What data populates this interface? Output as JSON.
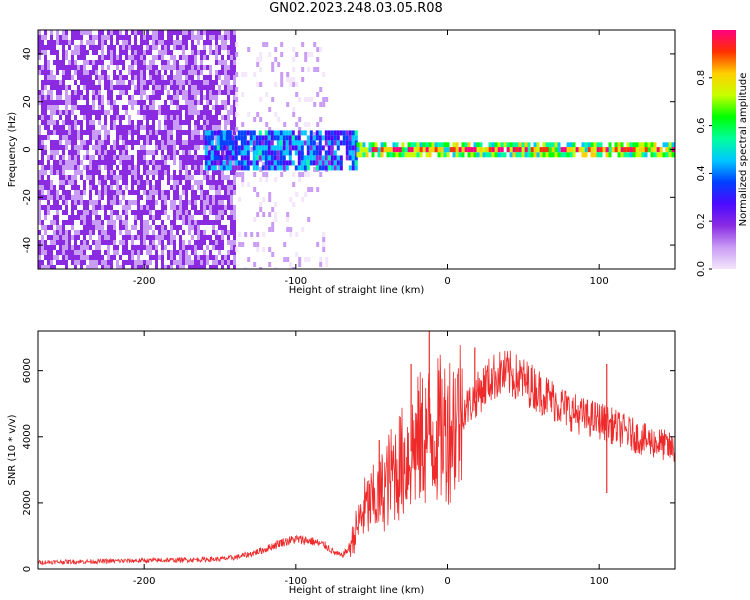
{
  "title": "GN02.2023.248.03.05.R08",
  "colors": {
    "snr_line": "#ee2a2a",
    "axis": "#000000",
    "colormap": [
      "#f4e6fb",
      "#c99cf5",
      "#8a2be2",
      "#4b0aff",
      "#0040ff",
      "#00c8ff",
      "#00ff9c",
      "#00ff00",
      "#c8ff00",
      "#ffd000",
      "#ff3000",
      "#ff0080"
    ]
  },
  "chart_data": [
    {
      "type": "heatmap",
      "title": "GN02.2023.248.03.05.R08",
      "xlabel": "Height of straight line (km)",
      "ylabel": "Frequency (Hz)",
      "xlim": [
        -270,
        150
      ],
      "ylim": [
        -50,
        50
      ],
      "xticks": [
        -200,
        -100,
        0,
        100
      ],
      "xtick_labels": [
        "-200",
        "-100",
        "0",
        "100"
      ],
      "yticks": [
        -40,
        -20,
        0,
        20,
        40
      ],
      "ytick_labels": [
        "-40",
        "-20",
        "0",
        "20",
        "40"
      ],
      "colorbar": {
        "label": "Normalized spectral amplitude",
        "range": [
          0,
          1
        ],
        "ticks": [
          0.0,
          0.2,
          0.4,
          0.6,
          0.8
        ],
        "tick_labels": [
          "0.0",
          "0.2",
          "0.4",
          "0.6",
          "0.8"
        ]
      },
      "regions": [
        {
          "height_range": [
            -270,
            -140
          ],
          "freq_range": [
            -50,
            50
          ],
          "amplitude": 0.15
        },
        {
          "height_range": [
            -140,
            -80
          ],
          "freq_range": [
            -50,
            45
          ],
          "amplitude": 0.05
        },
        {
          "height_range": [
            -160,
            -60
          ],
          "freq_range": [
            -8,
            8
          ],
          "amplitude": 0.35
        },
        {
          "height_range": [
            -60,
            150
          ],
          "freq_range": [
            -3,
            3
          ],
          "amplitude": 0.55
        },
        {
          "height_range": [
            -50,
            150
          ],
          "freq_range": [
            -1,
            1
          ],
          "amplitude": 0.85
        }
      ]
    },
    {
      "type": "line",
      "xlabel": "Height of straight line (km)",
      "ylabel": "SNR (10 * v/v)",
      "xlim": [
        -270,
        150
      ],
      "ylim": [
        0,
        7200
      ],
      "xticks": [
        -200,
        -100,
        0,
        100
      ],
      "xtick_labels": [
        "-200",
        "-100",
        "0",
        "100"
      ],
      "yticks": [
        0,
        2000,
        4000,
        6000
      ],
      "ytick_labels": [
        "0",
        "2000",
        "4000",
        "6000"
      ],
      "series": [
        {
          "x": [
            -270,
            -250,
            -230,
            -210,
            -190,
            -170,
            -150,
            -140,
            -130,
            -120,
            -110,
            -100,
            -90,
            -80,
            -75,
            -70,
            -65,
            -60,
            -55,
            -50,
            -45,
            -40,
            -35,
            -30,
            -25,
            -20,
            -15,
            -10,
            -5,
            0,
            5,
            10,
            15,
            20,
            25,
            30,
            35,
            40,
            45,
            50,
            60,
            70,
            80,
            90,
            100,
            110,
            120,
            130,
            140,
            150
          ],
          "y": [
            200,
            220,
            230,
            250,
            260,
            280,
            300,
            350,
            450,
            600,
            800,
            900,
            850,
            700,
            500,
            400,
            600,
            1200,
            1800,
            2000,
            2200,
            2600,
            3000,
            3200,
            3500,
            3800,
            4000,
            4100,
            4200,
            4300,
            4500,
            4800,
            5000,
            5300,
            5600,
            5800,
            5900,
            5900,
            5800,
            5700,
            5400,
            5100,
            4800,
            4600,
            4500,
            4300,
            4100,
            3900,
            3800,
            3600
          ]
        }
      ],
      "spikes": [
        {
          "x": -12,
          "y": 7200
        },
        {
          "x": -24,
          "y": 6200
        },
        {
          "x": -45,
          "y": 3900
        },
        {
          "x": 18,
          "y": 6700
        },
        {
          "x": 105,
          "y": 6200
        },
        {
          "x": 105,
          "y": 2300
        }
      ]
    }
  ]
}
